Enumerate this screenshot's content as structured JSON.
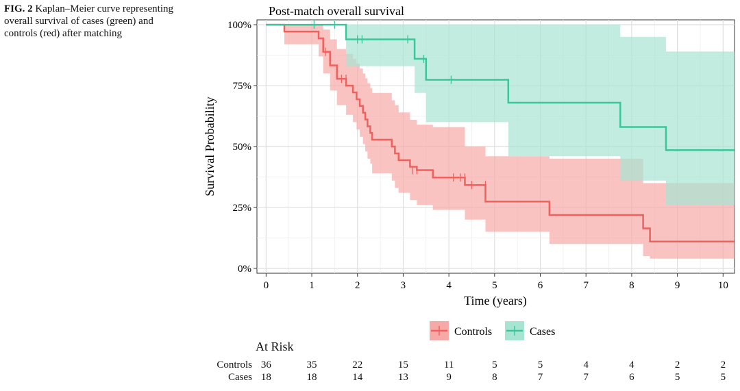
{
  "caption": {
    "fig_label": "FIG. 2",
    "text": "Kaplan–Meier curve representing overall survival of cases (green) and controls (red) after matching"
  },
  "at_risk": {
    "title": "At Risk",
    "rows": [
      {
        "label": "Controls",
        "values": [
          "36",
          "35",
          "22",
          "15",
          "11",
          "5",
          "5",
          "4",
          "4",
          "2",
          "2"
        ]
      },
      {
        "label": "Cases",
        "values": [
          "18",
          "18",
          "14",
          "13",
          "9",
          "8",
          "7",
          "7",
          "6",
          "5",
          "5"
        ]
      }
    ]
  },
  "colors": {
    "controls": "#f0605c",
    "cases": "#3cc49c",
    "controls_band": "#f7a9a7",
    "cases_band": "#a8e4d2"
  },
  "chart_data": {
    "type": "line",
    "title": "Post-match overall survival",
    "xlabel": "Time (years)",
    "ylabel": "Survival Probability",
    "xlim": [
      -0.2,
      10.25
    ],
    "ylim": [
      -0.02,
      1.02
    ],
    "x_ticks": [
      0,
      1,
      2,
      3,
      4,
      5,
      6,
      7,
      8,
      9,
      10
    ],
    "x_tick_labels": [
      "0",
      "1",
      "2",
      "3",
      "4",
      "5",
      "6",
      "7",
      "8",
      "9",
      "10"
    ],
    "y_ticks": [
      0,
      0.25,
      0.5,
      0.75,
      1.0
    ],
    "y_tick_labels": [
      "0%",
      "25%",
      "50%",
      "75%",
      "100%"
    ],
    "grid": true,
    "legend": {
      "position": "bottom",
      "entries": [
        "Controls",
        "Cases"
      ]
    },
    "series": [
      {
        "name": "Controls",
        "color": "#f0605c",
        "band_color": "#f7a9a7",
        "steps": [
          [
            0,
            1.0
          ],
          [
            0.4,
            0.972
          ],
          [
            1.15,
            0.944
          ],
          [
            1.25,
            0.889
          ],
          [
            1.4,
            0.833
          ],
          [
            1.55,
            0.778
          ],
          [
            1.75,
            0.75
          ],
          [
            1.9,
            0.722
          ],
          [
            1.98,
            0.694
          ],
          [
            2.05,
            0.667
          ],
          [
            2.12,
            0.639
          ],
          [
            2.17,
            0.611
          ],
          [
            2.22,
            0.583
          ],
          [
            2.28,
            0.556
          ],
          [
            2.32,
            0.528
          ],
          [
            2.75,
            0.5
          ],
          [
            2.82,
            0.472
          ],
          [
            2.9,
            0.444
          ],
          [
            3.15,
            0.417
          ],
          [
            3.3,
            0.403
          ],
          [
            3.65,
            0.373
          ],
          [
            4.35,
            0.342
          ],
          [
            4.8,
            0.274
          ],
          [
            6.2,
            0.219
          ],
          [
            8.25,
            0.164
          ],
          [
            8.4,
            0.11
          ],
          [
            10.25,
            0.11
          ]
        ],
        "lower": [
          [
            0,
            1.0
          ],
          [
            0.4,
            0.92
          ],
          [
            1.15,
            0.87
          ],
          [
            1.25,
            0.8
          ],
          [
            1.4,
            0.73
          ],
          [
            1.55,
            0.67
          ],
          [
            1.75,
            0.63
          ],
          [
            1.9,
            0.6
          ],
          [
            1.98,
            0.57
          ],
          [
            2.05,
            0.54
          ],
          [
            2.12,
            0.51
          ],
          [
            2.17,
            0.48
          ],
          [
            2.22,
            0.45
          ],
          [
            2.28,
            0.43
          ],
          [
            2.32,
            0.39
          ],
          [
            2.75,
            0.36
          ],
          [
            2.82,
            0.33
          ],
          [
            2.9,
            0.31
          ],
          [
            3.15,
            0.28
          ],
          [
            3.3,
            0.26
          ],
          [
            3.65,
            0.24
          ],
          [
            4.35,
            0.2
          ],
          [
            4.8,
            0.15
          ],
          [
            6.2,
            0.1
          ],
          [
            8.25,
            0.05
          ],
          [
            8.4,
            0.04
          ],
          [
            10.25,
            0.04
          ]
        ],
        "upper": [
          [
            0,
            1.0
          ],
          [
            0.4,
            1.0
          ],
          [
            1.15,
            1.0
          ],
          [
            1.25,
            0.98
          ],
          [
            1.4,
            0.94
          ],
          [
            1.55,
            0.9
          ],
          [
            1.75,
            0.88
          ],
          [
            1.9,
            0.86
          ],
          [
            1.98,
            0.84
          ],
          [
            2.05,
            0.82
          ],
          [
            2.12,
            0.8
          ],
          [
            2.17,
            0.78
          ],
          [
            2.22,
            0.76
          ],
          [
            2.28,
            0.74
          ],
          [
            2.32,
            0.72
          ],
          [
            2.75,
            0.69
          ],
          [
            2.82,
            0.67
          ],
          [
            2.9,
            0.64
          ],
          [
            3.15,
            0.61
          ],
          [
            3.3,
            0.59
          ],
          [
            3.65,
            0.58
          ],
          [
            4.35,
            0.5
          ],
          [
            4.8,
            0.46
          ],
          [
            6.2,
            0.45
          ],
          [
            8.25,
            0.35
          ],
          [
            8.4,
            0.35
          ],
          [
            10.25,
            0.31
          ]
        ],
        "censors": [
          [
            1.3,
            0.889
          ],
          [
            1.65,
            0.778
          ],
          [
            1.75,
            0.778
          ],
          [
            3.2,
            0.403
          ],
          [
            3.3,
            0.403
          ],
          [
            4.1,
            0.373
          ],
          [
            4.25,
            0.373
          ],
          [
            4.35,
            0.373
          ],
          [
            4.5,
            0.342
          ],
          [
            4.8,
            0.342
          ]
        ]
      },
      {
        "name": "Cases",
        "color": "#3cc49c",
        "band_color": "#a8e4d2",
        "steps": [
          [
            0,
            1.0
          ],
          [
            1.75,
            0.94
          ],
          [
            3.25,
            0.86
          ],
          [
            3.5,
            0.774
          ],
          [
            5.3,
            0.68
          ],
          [
            7.75,
            0.58
          ],
          [
            8.75,
            0.485
          ],
          [
            10.25,
            0.485
          ]
        ],
        "lower": [
          [
            0,
            1.0
          ],
          [
            1.75,
            0.83
          ],
          [
            3.25,
            0.72
          ],
          [
            3.5,
            0.6
          ],
          [
            5.3,
            0.46
          ],
          [
            7.75,
            0.36
          ],
          [
            8.75,
            0.26
          ],
          [
            10.25,
            0.26
          ]
        ],
        "upper": [
          [
            0,
            1.0
          ],
          [
            1.75,
            1.0
          ],
          [
            3.25,
            1.0
          ],
          [
            3.5,
            1.0
          ],
          [
            5.3,
            1.0
          ],
          [
            7.75,
            0.95
          ],
          [
            8.75,
            0.89
          ],
          [
            10.25,
            0.89
          ]
        ],
        "censors": [
          [
            1.05,
            1.0
          ],
          [
            1.5,
            1.0
          ],
          [
            2.0,
            0.94
          ],
          [
            2.1,
            0.94
          ],
          [
            3.1,
            0.94
          ],
          [
            3.45,
            0.86
          ],
          [
            4.05,
            0.774
          ]
        ]
      }
    ]
  }
}
